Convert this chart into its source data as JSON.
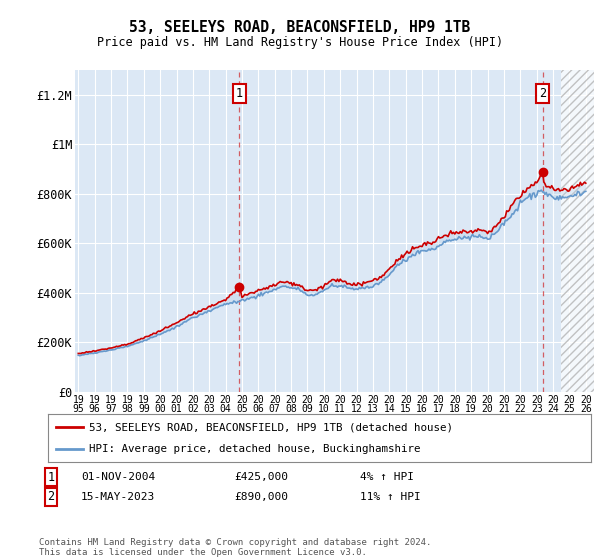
{
  "title": "53, SEELEYS ROAD, BEACONSFIELD, HP9 1TB",
  "subtitle": "Price paid vs. HM Land Registry's House Price Index (HPI)",
  "legend_line1": "53, SEELEYS ROAD, BEACONSFIELD, HP9 1TB (detached house)",
  "legend_line2": "HPI: Average price, detached house, Buckinghamshire",
  "annotation1_date": "01-NOV-2004",
  "annotation1_price": "£425,000",
  "annotation1_hpi": "4% ↑ HPI",
  "annotation2_date": "15-MAY-2023",
  "annotation2_price": "£890,000",
  "annotation2_hpi": "11% ↑ HPI",
  "footer": "Contains HM Land Registry data © Crown copyright and database right 2024.\nThis data is licensed under the Open Government Licence v3.0.",
  "background_color": "#ffffff",
  "plot_bg_color": "#dce8f5",
  "grid_color": "#ffffff",
  "hpi_line_color": "#6699cc",
  "price_line_color": "#cc0000",
  "fill_color": "#b8d0e8",
  "hatch_color": "#cccccc",
  "ylim": [
    0,
    1300000
  ],
  "yticks": [
    0,
    200000,
    400000,
    600000,
    800000,
    1000000,
    1200000
  ],
  "ytick_labels": [
    "£0",
    "£200K",
    "£400K",
    "£600K",
    "£800K",
    "£1M",
    "£1.2M"
  ],
  "sale1_x": 2004.83,
  "sale1_y": 425000,
  "sale2_x": 2023.37,
  "sale2_y": 890000,
  "hatch_start_x": 2024.5,
  "xlim_start": 1994.8,
  "xlim_end": 2026.5,
  "vline_color": "#cc0000",
  "vline_alpha": 0.6
}
